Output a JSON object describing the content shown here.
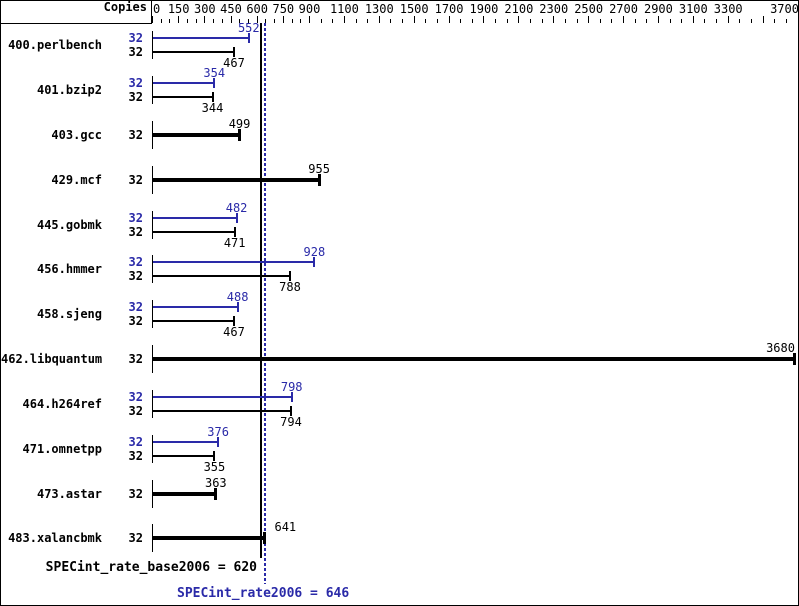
{
  "header": {
    "copies_label": "Copies"
  },
  "footer": {
    "base_label": "SPECint_rate_base2006 = 620",
    "peak_label": "SPECint_rate2006 = 646"
  },
  "colors": {
    "peak_blue": "#2a2aa8",
    "bar_black": "#000000",
    "background": "#ffffff"
  },
  "chart_data": {
    "type": "bar",
    "orientation": "horizontal",
    "copies_column_label": "Copies",
    "xlim": [
      0,
      3700
    ],
    "axis_tick_labels": [
      0,
      150,
      300,
      450,
      600,
      750,
      900,
      1100,
      1300,
      1500,
      1700,
      1900,
      2100,
      2300,
      2500,
      2700,
      2900,
      3100,
      3300,
      3700
    ],
    "unlabeled_major_ticks": [
      3500
    ],
    "minor_ticks_between_majors": 2,
    "series_legend": {
      "peak_color_meaning": "peak (SPECint_rate2006)",
      "base_color_meaning": "base (SPECint_rate_base2006)"
    },
    "benchmarks": [
      {
        "name": "400.perlbench",
        "peak": {
          "copies": 32,
          "value": 552
        },
        "base": {
          "copies": 32,
          "value": 467
        }
      },
      {
        "name": "401.bzip2",
        "peak": {
          "copies": 32,
          "value": 354
        },
        "base": {
          "copies": 32,
          "value": 344
        }
      },
      {
        "name": "403.gcc",
        "base": {
          "copies": 32,
          "value": 499
        }
      },
      {
        "name": "429.mcf",
        "base": {
          "copies": 32,
          "value": 955
        }
      },
      {
        "name": "445.gobmk",
        "peak": {
          "copies": 32,
          "value": 482
        },
        "base": {
          "copies": 32,
          "value": 471
        }
      },
      {
        "name": "456.hmmer",
        "peak": {
          "copies": 32,
          "value": 928
        },
        "base": {
          "copies": 32,
          "value": 788
        }
      },
      {
        "name": "458.sjeng",
        "peak": {
          "copies": 32,
          "value": 488
        },
        "base": {
          "copies": 32,
          "value": 467
        }
      },
      {
        "name": "462.libquantum",
        "base": {
          "copies": 32,
          "value": 3680,
          "label_align": "right-edge"
        }
      },
      {
        "name": "464.h264ref",
        "peak": {
          "copies": 32,
          "value": 798
        },
        "base": {
          "copies": 32,
          "value": 794
        }
      },
      {
        "name": "471.omnetpp",
        "peak": {
          "copies": 32,
          "value": 376
        },
        "base": {
          "copies": 32,
          "value": 355
        }
      },
      {
        "name": "473.astar",
        "base": {
          "copies": 32,
          "value": 363
        }
      },
      {
        "name": "483.xalancbmk",
        "base": {
          "copies": 32,
          "value": 641,
          "label_dx": 21
        }
      }
    ],
    "summary": {
      "base_metric": "SPECint_rate_base2006",
      "base_value": 620,
      "peak_metric": "SPECint_rate2006",
      "peak_value": 646
    }
  }
}
